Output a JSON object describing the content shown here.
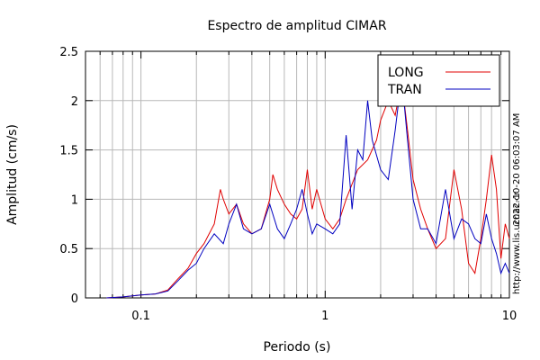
{
  "chart_data": {
    "type": "line",
    "title": "Espectro de amplitud CIMAR",
    "xlabel": "Periodo (s)",
    "ylabel": "Amplitud (cm/s)",
    "xscale": "log",
    "xlim": [
      0.05,
      10
    ],
    "ylim": [
      0,
      2.5
    ],
    "x_ticks": [
      {
        "value": 0.1,
        "label": "0.1"
      },
      {
        "value": 1,
        "label": "1"
      },
      {
        "value": 10,
        "label": "10"
      }
    ],
    "y_ticks": [
      {
        "value": 0,
        "label": "0"
      },
      {
        "value": 0.5,
        "label": "0.5"
      },
      {
        "value": 1,
        "label": "1"
      },
      {
        "value": 1.5,
        "label": "1.5"
      },
      {
        "value": 2,
        "label": "2"
      },
      {
        "value": 2.5,
        "label": "2.5"
      }
    ],
    "grid": true,
    "legend_position": "top-right",
    "series": [
      {
        "name": "LONG",
        "color": "#e00000",
        "x": [
          0.065,
          0.08,
          0.09,
          0.1,
          0.12,
          0.14,
          0.16,
          0.18,
          0.2,
          0.22,
          0.25,
          0.27,
          0.28,
          0.3,
          0.33,
          0.36,
          0.4,
          0.45,
          0.5,
          0.52,
          0.55,
          0.6,
          0.65,
          0.7,
          0.75,
          0.8,
          0.85,
          0.9,
          1.0,
          1.1,
          1.2,
          1.3,
          1.5,
          1.7,
          1.9,
          2.0,
          2.2,
          2.4,
          2.6,
          2.8,
          3.0,
          3.3,
          3.6,
          4.0,
          4.5,
          5.0,
          5.5,
          6.0,
          6.5,
          7.0,
          7.5,
          8.0,
          8.5,
          9.0,
          9.5,
          10.0
        ],
        "values": [
          0.0,
          0.01,
          0.02,
          0.03,
          0.04,
          0.08,
          0.2,
          0.3,
          0.45,
          0.55,
          0.75,
          1.1,
          1.0,
          0.85,
          0.95,
          0.75,
          0.65,
          0.7,
          1.0,
          1.25,
          1.1,
          0.95,
          0.85,
          0.8,
          0.9,
          1.3,
          0.9,
          1.1,
          0.8,
          0.7,
          0.8,
          1.0,
          1.3,
          1.4,
          1.6,
          1.8,
          2.0,
          1.85,
          2.2,
          1.7,
          1.2,
          0.9,
          0.7,
          0.5,
          0.6,
          1.3,
          0.9,
          0.35,
          0.25,
          0.6,
          1.0,
          1.45,
          1.1,
          0.4,
          0.75,
          0.6
        ]
      },
      {
        "name": "TRAN",
        "color": "#0000c0",
        "x": [
          0.065,
          0.08,
          0.09,
          0.1,
          0.12,
          0.14,
          0.16,
          0.18,
          0.2,
          0.22,
          0.25,
          0.28,
          0.3,
          0.33,
          0.36,
          0.4,
          0.45,
          0.5,
          0.55,
          0.6,
          0.65,
          0.7,
          0.75,
          0.8,
          0.85,
          0.9,
          1.0,
          1.1,
          1.2,
          1.3,
          1.4,
          1.5,
          1.6,
          1.7,
          1.8,
          2.0,
          2.2,
          2.4,
          2.6,
          2.8,
          3.0,
          3.3,
          3.6,
          4.0,
          4.5,
          5.0,
          5.5,
          6.0,
          6.5,
          7.0,
          7.5,
          8.0,
          8.5,
          9.0,
          9.5,
          10.0
        ],
        "values": [
          0.0,
          0.01,
          0.02,
          0.03,
          0.04,
          0.07,
          0.18,
          0.28,
          0.35,
          0.5,
          0.65,
          0.55,
          0.75,
          0.95,
          0.7,
          0.65,
          0.7,
          0.95,
          0.7,
          0.6,
          0.75,
          0.9,
          1.1,
          0.85,
          0.65,
          0.75,
          0.7,
          0.65,
          0.75,
          1.65,
          0.9,
          1.5,
          1.4,
          2.0,
          1.6,
          1.3,
          1.2,
          1.7,
          2.25,
          1.6,
          1.0,
          0.7,
          0.7,
          0.55,
          1.1,
          0.6,
          0.8,
          0.75,
          0.6,
          0.55,
          0.85,
          0.6,
          0.45,
          0.25,
          0.35,
          0.25
        ]
      }
    ],
    "side_text": [
      "2022-10-20 06:03:07 AM",
      "http://www.lis.ucr.ac.cr"
    ]
  }
}
